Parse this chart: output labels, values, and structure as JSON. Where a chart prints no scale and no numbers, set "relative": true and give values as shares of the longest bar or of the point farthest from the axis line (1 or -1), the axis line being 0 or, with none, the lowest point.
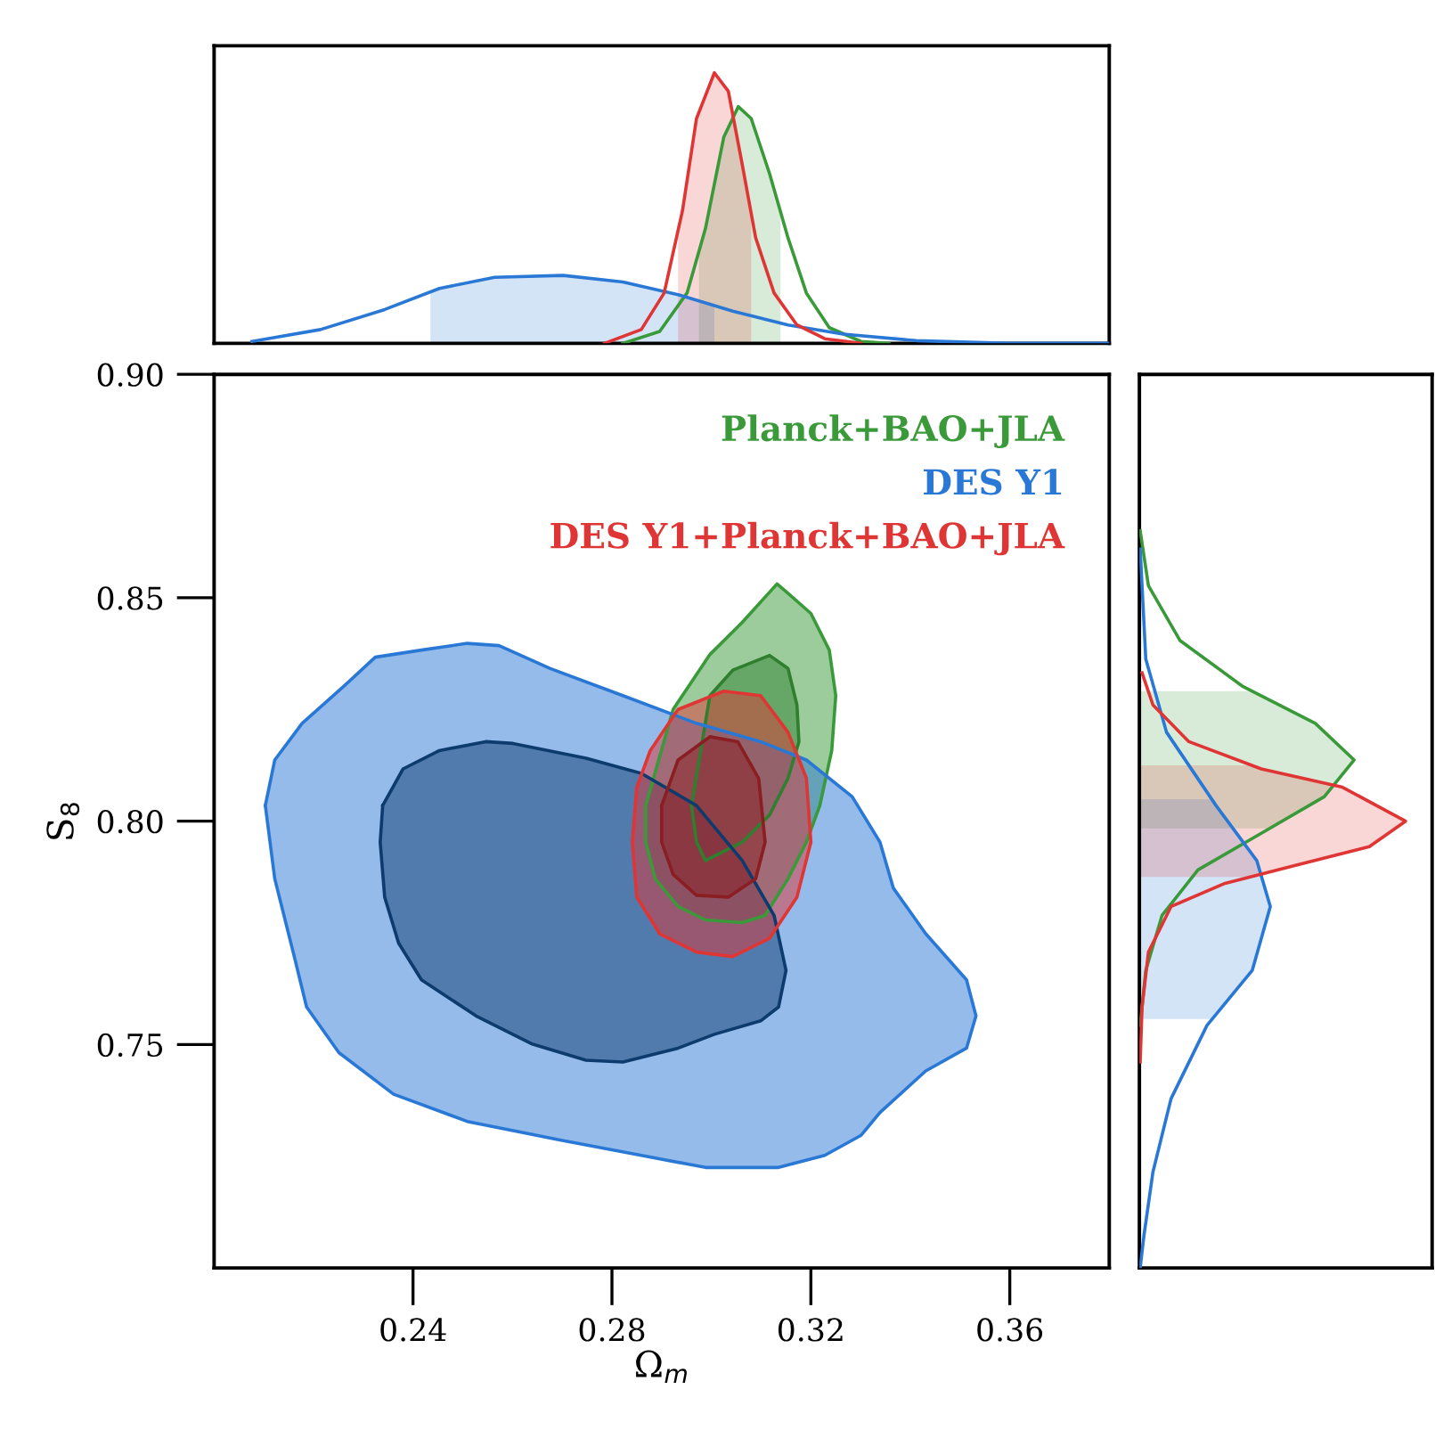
{
  "chart_data": [
    {
      "type": "line",
      "relative": true,
      "xlim": [
        0.2,
        0.38
      ],
      "series": [
        {
          "color": "#3a9a3a",
          "x": [
            0.2822,
            0.2896,
            0.2951,
            0.2988,
            0.3025,
            0.3054,
            0.308,
            0.3117,
            0.3154,
            0.3191,
            0.3237,
            0.3301,
            0.3357
          ],
          "values": [
            0,
            0.044,
            0.186,
            0.424,
            0.763,
            0.875,
            0.831,
            0.627,
            0.39,
            0.186,
            0.058,
            0.007,
            0
          ]
        },
        {
          "color": "#2a78d6",
          "x": [
            0.2076,
            0.2214,
            0.2343,
            0.2453,
            0.2564,
            0.2702,
            0.2822,
            0.2933,
            0.3043,
            0.3154,
            0.3265,
            0.3412,
            0.3596,
            0.38
          ],
          "values": [
            0.007,
            0.051,
            0.125,
            0.203,
            0.244,
            0.251,
            0.227,
            0.18,
            0.119,
            0.068,
            0.034,
            0.01,
            0,
            0
          ]
        },
        {
          "color": "#e03535",
          "x": [
            0.2785,
            0.2859,
            0.2905,
            0.2942,
            0.297,
            0.3006,
            0.3034,
            0.3062,
            0.3089,
            0.3126,
            0.3172,
            0.3228,
            0.3301
          ],
          "values": [
            0,
            0.051,
            0.186,
            0.492,
            0.831,
            1.0,
            0.932,
            0.661,
            0.39,
            0.186,
            0.068,
            0.017,
            0
          ]
        },
        {
          "type": "area",
          "color": "#3a9a3a",
          "x": [
            0.2975,
            0.2988,
            0.3025,
            0.3054,
            0.308,
            0.3117,
            0.3139
          ],
          "values": [
            0.34,
            0.424,
            0.763,
            0.875,
            0.831,
            0.627,
            0.486
          ]
        },
        {
          "type": "area",
          "color": "#2a78d6",
          "x": [
            0.2435,
            0.2453,
            0.2564,
            0.2702,
            0.2822,
            0.2933,
            0.3006
          ],
          "values": [
            0.19,
            0.203,
            0.244,
            0.251,
            0.227,
            0.18,
            0.14
          ]
        },
        {
          "type": "area",
          "color": "#e03535",
          "x": [
            0.2933,
            0.2942,
            0.297,
            0.3006,
            0.3034,
            0.3062,
            0.308
          ],
          "values": [
            0.418,
            0.492,
            0.831,
            1.0,
            0.932,
            0.661,
            0.48
          ]
        }
      ]
    },
    {
      "type": "area",
      "xlim": [
        0.2,
        0.38
      ],
      "ylim": [
        0.7,
        0.9
      ],
      "xticks": [
        0.24,
        0.28,
        0.32,
        0.36
      ],
      "yticks": [
        0.75,
        {
          "value": 0.8,
          "label": "0.80"
        },
        0.85,
        {
          "value": 0.9,
          "label": "0.90"
        }
      ],
      "xlabel": "Ω$_{m}$",
      "ylabel": "S$_{8}$",
      "legend": "top right",
      "series": [
        {
          "name": "Planck+BAO+JLA",
          "color": "#3a9a3a",
          "x": [
            0.2868,
            0.2923,
            0.2997,
            0.3062,
            0.3132,
            0.3154,
            0.32,
            0.3237,
            0.325,
            0.3242,
            0.3218,
            0.3191,
            0.3154,
            0.3108,
            0.3062,
            0.2988,
            0.2933,
            0.2887,
            0.2868
          ],
          "values": [
            0.8035,
            0.825,
            0.8373,
            0.8445,
            0.8531,
            0.851,
            0.8465,
            0.8383,
            0.8281,
            0.8158,
            0.8035,
            0.7953,
            0.7871,
            0.7789,
            0.7773,
            0.7779,
            0.7809,
            0.7871,
            0.7953
          ]
        },
        {
          "color": "#2f7f2f",
          "x": [
            0.296,
            0.2997,
            0.3043,
            0.3117,
            0.3154,
            0.3172,
            0.3176,
            0.3154,
            0.3117,
            0.3062,
            0.2988,
            0.297
          ],
          "values": [
            0.8035,
            0.8281,
            0.8338,
            0.8371,
            0.8342,
            0.826,
            0.8178,
            0.8096,
            0.8014,
            0.7953,
            0.7912,
            0.7953
          ]
        },
        {
          "name": "DES Y1",
          "color": "#2a78d6",
          "x": [
            0.2103,
            0.2122,
            0.2177,
            0.226,
            0.2324,
            0.2417,
            0.2509,
            0.2573,
            0.2675,
            0.2822,
            0.297,
            0.3099,
            0.3191,
            0.3283,
            0.3339,
            0.3366,
            0.3431,
            0.3513,
            0.3532,
            0.3513,
            0.3431,
            0.3339,
            0.3301,
            0.3228,
            0.3135,
            0.2988,
            0.2859,
            0.2693,
            0.2509,
            0.2361,
            0.2251,
            0.2186,
            0.2159,
            0.2122
          ],
          "values": [
            0.8035,
            0.8137,
            0.8219,
            0.8301,
            0.8367,
            0.8383,
            0.8398,
            0.8393,
            0.8342,
            0.8281,
            0.8219,
            0.8178,
            0.8137,
            0.8055,
            0.7953,
            0.785,
            0.7748,
            0.7645,
            0.7564,
            0.7492,
            0.7441,
            0.7348,
            0.7297,
            0.7252,
            0.7225,
            0.7225,
            0.7252,
            0.7287,
            0.7328,
            0.7389,
            0.7482,
            0.7584,
            0.7707,
            0.7871
          ]
        },
        {
          "color": "#0d3b6e",
          "x": [
            0.2339,
            0.238,
            0.2453,
            0.2546,
            0.2601,
            0.2748,
            0.2859,
            0.297,
            0.3062,
            0.3126,
            0.315,
            0.3135,
            0.3099,
            0.3006,
            0.2933,
            0.2822,
            0.2748,
            0.2638,
            0.2527,
            0.2417,
            0.2371,
            0.2343,
            0.2334
          ],
          "values": [
            0.8035,
            0.8117,
            0.8158,
            0.8178,
            0.8174,
            0.8141,
            0.8107,
            0.8035,
            0.7912,
            0.7789,
            0.7666,
            0.7584,
            0.7553,
            0.7523,
            0.7492,
            0.7461,
            0.7465,
            0.7502,
            0.7564,
            0.7645,
            0.7727,
            0.783,
            0.7953
          ]
        },
        {
          "name": "DES Y1+Planck+BAO+JLA",
          "color": "#e03535",
          "x": [
            0.285,
            0.2877,
            0.2933,
            0.3025,
            0.3099,
            0.3154,
            0.3191,
            0.32,
            0.3172,
            0.3117,
            0.3043,
            0.297,
            0.2896,
            0.285,
            0.2841
          ],
          "values": [
            0.8076,
            0.8158,
            0.825,
            0.8291,
            0.8281,
            0.8199,
            0.8096,
            0.7953,
            0.783,
            0.7738,
            0.7697,
            0.7707,
            0.7748,
            0.783,
            0.7953
          ]
        },
        {
          "color": "#8a1e22",
          "x": [
            0.29,
            0.2933,
            0.2997,
            0.3053,
            0.3095,
            0.3108,
            0.3089,
            0.3034,
            0.297,
            0.2923,
            0.29
          ],
          "values": [
            0.8035,
            0.8137,
            0.8189,
            0.8178,
            0.8096,
            0.7953,
            0.7871,
            0.783,
            0.7834,
            0.7881,
            0.7953
          ]
        }
      ]
    },
    {
      "type": "line",
      "relative": true,
      "orientation": "horizontal",
      "ylim": [
        0.7,
        0.9
      ],
      "series": [
        {
          "color": "#3a9a3a",
          "x": [
            0.865,
            0.8527,
            0.8404,
            0.8301,
            0.8219,
            0.8137,
            0.8055,
            0.7973,
            0.7891,
            0.7789,
            0.7666,
            0.7543
          ],
          "values": [
            0.003,
            0.034,
            0.153,
            0.39,
            0.661,
            0.807,
            0.695,
            0.458,
            0.22,
            0.085,
            0.024,
            0.003
          ]
        },
        {
          "color": "#2a78d6",
          "x": [
            0.8609,
            0.8363,
            0.8199,
            0.8035,
            0.7912,
            0.7809,
            0.7666,
            0.7543,
            0.7379,
            0.7215,
            0.7072,
            0.7
          ],
          "values": [
            0.003,
            0.024,
            0.102,
            0.288,
            0.441,
            0.492,
            0.424,
            0.254,
            0.119,
            0.051,
            0.017,
            0.003
          ]
        },
        {
          "color": "#e03535",
          "x": [
            0.8332,
            0.826,
            0.8178,
            0.8117,
            0.8076,
            0.8,
            0.7943,
            0.7902,
            0.7861,
            0.7809,
            0.7707,
            0.7584,
            0.7461
          ],
          "values": [
            0.01,
            0.051,
            0.186,
            0.458,
            0.763,
            1.0,
            0.864,
            0.593,
            0.322,
            0.119,
            0.034,
            0.01,
            0.003
          ]
        },
        {
          "type": "area",
          "color": "#3a9a3a",
          "x": [
            0.8291,
            0.8219,
            0.8137,
            0.8055,
            0.7984
          ],
          "values": [
            0.423,
            0.661,
            0.807,
            0.695,
            0.49
          ]
        },
        {
          "type": "area",
          "color": "#2a78d6",
          "x": [
            0.8049,
            0.8035,
            0.7912,
            0.7809,
            0.7666,
            0.7557
          ],
          "values": [
            0.272,
            0.288,
            0.441,
            0.492,
            0.424,
            0.273
          ]
        },
        {
          "type": "area",
          "color": "#e03535",
          "x": [
            0.8125,
            0.8117,
            0.8076,
            0.8,
            0.7943,
            0.7902,
            0.7875
          ],
          "values": [
            0.422,
            0.458,
            0.763,
            1.0,
            0.864,
            0.593,
            0.415
          ]
        }
      ]
    }
  ]
}
